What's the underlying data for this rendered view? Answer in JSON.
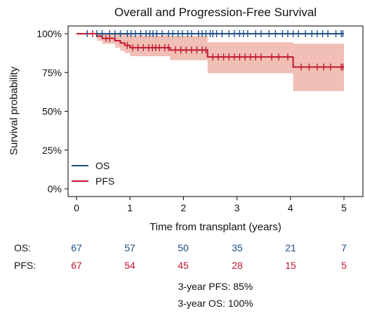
{
  "chart_data": {
    "type": "line",
    "title": "Overall and Progression-Free Survival",
    "xlabel": "Time from transplant (years)",
    "ylabel": "Survival probability",
    "xlim": [
      0,
      5
    ],
    "ylim": [
      0,
      1
    ],
    "xticks": [
      "0",
      "1",
      "2",
      "3",
      "4",
      "5"
    ],
    "yticks": [
      "0%",
      "25%",
      "50%",
      "75%",
      "100%"
    ],
    "grid": false,
    "legend_position": "bottom-left",
    "series": [
      {
        "name": "OS",
        "color": "#1f4e8c",
        "steps": [
          [
            0,
            1.0
          ],
          [
            5.0,
            1.0
          ]
        ],
        "censors": [
          0.2,
          0.38,
          0.48,
          0.62,
          0.72,
          0.82,
          0.95,
          1.02,
          1.1,
          1.2,
          1.3,
          1.37,
          1.43,
          1.5,
          1.6,
          1.72,
          1.8,
          1.9,
          1.98,
          2.08,
          2.15,
          2.28,
          2.35,
          2.42,
          2.5,
          2.55,
          2.62,
          2.72,
          2.85,
          2.95,
          3.05,
          3.12,
          3.2,
          3.35,
          3.45,
          3.6,
          3.72,
          3.85,
          3.95,
          4.05,
          4.15,
          4.28,
          4.4,
          4.5,
          4.6,
          4.7,
          4.85,
          4.95,
          4.98
        ]
      },
      {
        "name": "PFS",
        "color": "#c0182f",
        "ci_color": "#eeb4a8",
        "steps": [
          [
            0,
            1.0
          ],
          [
            0.38,
            0.985
          ],
          [
            0.48,
            0.97
          ],
          [
            0.72,
            0.955
          ],
          [
            0.82,
            0.94
          ],
          [
            0.9,
            0.925
          ],
          [
            1.0,
            0.91
          ],
          [
            1.75,
            0.895
          ],
          [
            2.45,
            0.85
          ],
          [
            4.05,
            0.785
          ],
          [
            5.0,
            0.785
          ]
        ],
        "ci": [
          [
            0,
            1.0,
            1.0
          ],
          [
            0.38,
            1.0,
            0.955
          ],
          [
            0.48,
            1.0,
            0.935
          ],
          [
            0.72,
            1.0,
            0.91
          ],
          [
            0.82,
            1.0,
            0.89
          ],
          [
            0.9,
            1.0,
            0.875
          ],
          [
            1.0,
            0.99,
            0.855
          ],
          [
            1.75,
            0.985,
            0.83
          ],
          [
            2.45,
            0.945,
            0.745
          ],
          [
            4.05,
            0.935,
            0.63
          ],
          [
            5.0,
            0.935,
            0.63
          ]
        ],
        "censors": [
          0.3,
          0.55,
          0.62,
          0.95,
          1.05,
          1.15,
          1.25,
          1.35,
          1.42,
          1.48,
          1.55,
          1.65,
          1.72,
          1.85,
          1.95,
          2.05,
          2.15,
          2.25,
          2.35,
          2.42,
          2.55,
          2.65,
          2.75,
          2.85,
          2.95,
          3.05,
          3.15,
          3.25,
          3.35,
          3.45,
          3.65,
          3.78,
          3.95,
          4.2,
          4.35,
          4.5,
          4.62,
          4.75,
          4.95,
          4.98
        ]
      }
    ]
  },
  "legend": [
    {
      "label": "OS",
      "color": "#1f4e8c"
    },
    {
      "label": "PFS",
      "color": "#c0182f"
    }
  ],
  "risk_table": {
    "rows": [
      {
        "label": "OS:",
        "color": "#1f4e8c",
        "values": [
          "67",
          "57",
          "50",
          "35",
          "21",
          "7"
        ]
      },
      {
        "label": "PFS:",
        "color": "#c0182f",
        "values": [
          "67",
          "54",
          "45",
          "28",
          "15",
          "5"
        ]
      }
    ]
  },
  "summary": {
    "line1": "3-year PFS: 85%",
    "line2": "3-year OS: 100%"
  }
}
